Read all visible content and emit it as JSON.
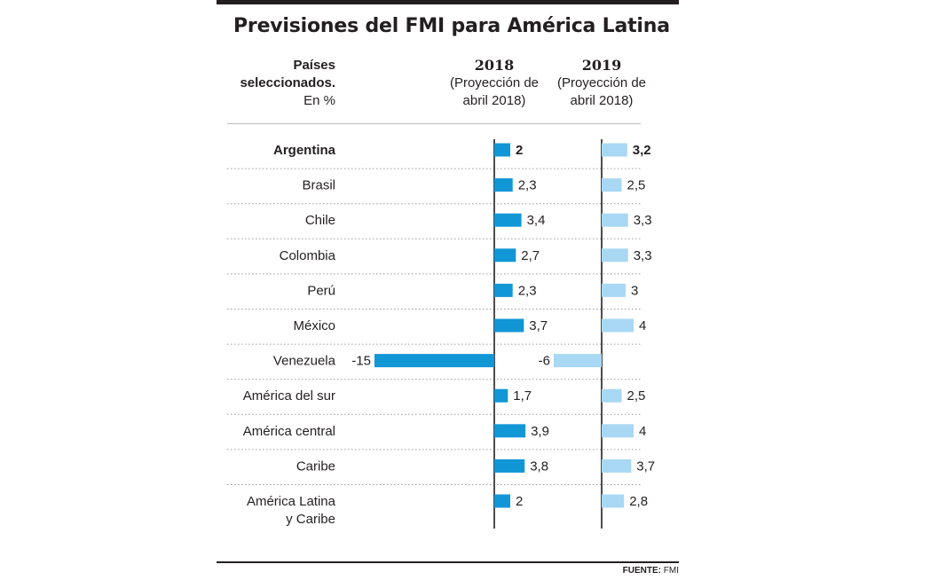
{
  "header": {
    "title": "Previsiones del FMI para América Latina",
    "countries_line1": "Países",
    "countries_line2": "seleccionados.",
    "countries_line3": "En %",
    "col_2018_year": "2018",
    "col_2018_line1": "(Proyección de",
    "col_2018_line2": "abril 2018)",
    "col_2019_year": "2019",
    "col_2019_line1": "(Proyección de",
    "col_2019_line2": "abril 2018)"
  },
  "footer": {
    "source_label": "FUENTE:",
    "source_name": "FMI"
  },
  "chart_data": {
    "type": "bar",
    "title": "Previsiones del FMI para América Latina",
    "unit": "%",
    "categories": [
      "Argentina",
      "Brasil",
      "Chile",
      "Colombia",
      "Perú",
      "México",
      "Venezuela",
      "América del sur",
      "América central",
      "Caribe",
      "América Latina y Caribe"
    ],
    "category_lines": [
      [
        "Argentina"
      ],
      [
        "Brasil"
      ],
      [
        "Chile"
      ],
      [
        "Colombia"
      ],
      [
        "Perú"
      ],
      [
        "México"
      ],
      [
        "Venezuela"
      ],
      [
        "América del sur"
      ],
      [
        "América central"
      ],
      [
        "Caribe"
      ],
      [
        "América Latina",
        "y Caribe"
      ]
    ],
    "highlighted_category": "Argentina",
    "series": [
      {
        "name": "2018 (Proyección de abril 2018)",
        "color": "#1196d6",
        "values": [
          2,
          2.3,
          3.4,
          2.7,
          2.3,
          3.7,
          -15,
          1.7,
          3.9,
          3.8,
          2
        ],
        "labels": [
          "2",
          "2,3",
          "3,4",
          "2,7",
          "2,3",
          "3,7",
          "-15",
          "1,7",
          "3,9",
          "3,8",
          "2"
        ]
      },
      {
        "name": "2019 (Proyección de abril 2018)",
        "color": "#a8d8f3",
        "values": [
          3.2,
          2.5,
          3.3,
          3.3,
          3,
          4,
          -6,
          2.5,
          4,
          3.7,
          2.8
        ],
        "labels": [
          "3,2",
          "2,5",
          "3,3",
          "3,3",
          "3",
          "4",
          "-6",
          "2,5",
          "4",
          "3,7",
          "2,8"
        ]
      }
    ],
    "source": "FUENTE: FMI"
  }
}
